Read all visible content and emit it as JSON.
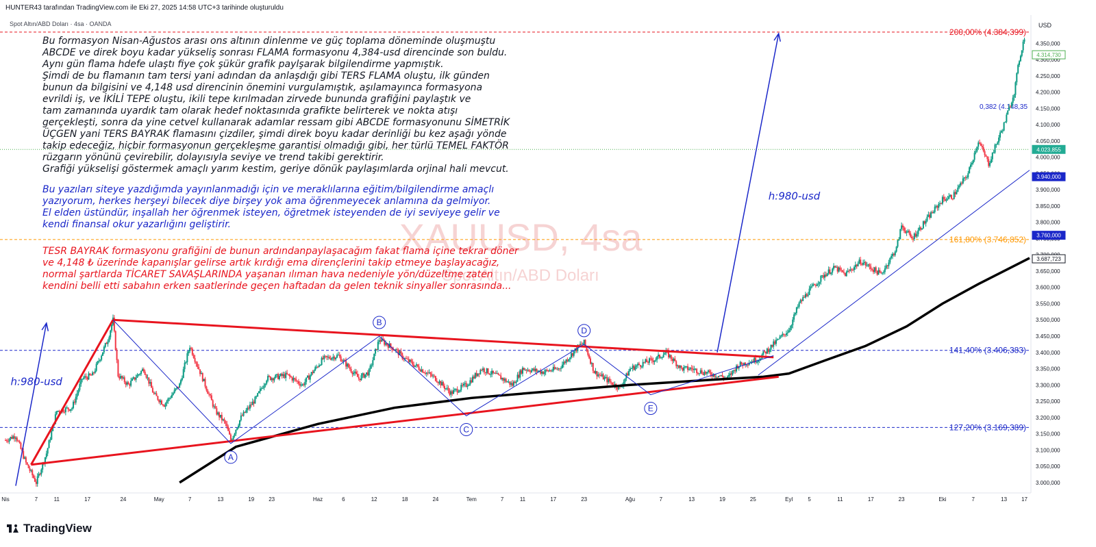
{
  "header": {
    "attribution": "HUNTER43 tarafından TradingView.com ile Eki 27, 2025 14:58 UTC+3 tarihinde oluşturuldu",
    "symbol": "Spot Altın/ABD Doları · 4sa · OANDA",
    "currency": "USD"
  },
  "watermark": {
    "title": "XAUUSD, 4sa",
    "subtitle": "Spot Altın/ABD Doları"
  },
  "notes": {
    "black": [
      "Bu formasyon Nisan-Ağustos arası ons altının dinlenme ve güç toplama döneminde oluşmuştu",
      "ABCDE ve direk boyu kadar yükseliş sonrası FLAMA formasyonu 4,384-usd direncinde son buldu.",
      "Aynı gün flama hdefe ulaştı fiye çok şükür grafik paylşarak bilgilendirme yapmıştık.",
      "Şimdi de bu flamanın tam tersi yani adından da anlaşdığı gibi TERS FLAMA oluştu, ilk günden",
      "bunun da bilgisini ve 4,148 usd direncinin önemini vurgulamıştık, aşılamayınca formasyona",
      "evrildi iş, ve İKİLİ TEPE oluştu, ikili tepe kırılmadan zirvede bununda grafiğini paylaştık ve",
      "tam zamanında uyardık tam olarak hedef noktasınıda grafikte belirterek ve nokta atışı",
      "gerçekleşti, sonra da yine cetvel kullanarak adamlar ressam gibi ABCDE formasyonunu SİMETRİK",
      "ÜÇGEN yani TERS BAYRAK flamasını çizdiler, şimdi direk boyu kadar derinliği bu kez aşağı yönde",
      "takip edeceğiz, hiçbir formasyonun gerçekleşme garantisi olmadığı gibi, her türlü TEMEL FAKTÖR",
      "rüzgarın yönünü çevirebilir, dolayısıyla seviye ve trend takibi gerektirir.",
      "Grafiği yükselişi göstermek amaçlı yarım kestim, geriye dönük paylaşımlarda orjinal hali mevcut."
    ],
    "blue": [
      "Bu yazıları siteye yazdığımda yayınlanmadığı için ve meraklılarına eğitim/bilgilendirme amaçlı",
      "yazıyorum, herkes herşeyi bilecek diye birşey yok ama öğrenmeyecek anlamına da gelmiyor.",
      "El elden üstündür, inşallah her öğrenmek isteyen, öğretmek isteyenden de iyi seviyeye gelir ve",
      "kendi finansal okur yazarlığını geliştirir."
    ],
    "red": [
      "TESR BAYRAK formasyonu grafiğini de bunun ardındanpaylaşacağım fakat flama içine tekrar döner",
      "ve 4,148 ₺ üzerinde kapanışlar gelirse artık kırdığı ema dirençlerini takip etmeye başlayacağız,",
      "normal şartlarda TİCARET SAVAŞLARINDA yaşanan ılıman hava nedeniyle yön/düzeltme zaten",
      "kendini belli etti sabahın erken saatlerinde geçen haftadan da gelen teknik sinyaller sonrasında..."
    ]
  },
  "brand": {
    "logo_text": "TradingView"
  },
  "chart_data": {
    "type": "candlestick",
    "interval": "4sa",
    "y_axis": {
      "range": [
        2985,
        4420
      ],
      "ticks": [
        3000,
        3050,
        3100,
        3150,
        3200,
        3250,
        3300,
        3350,
        3400,
        3450,
        3500,
        3550,
        3600,
        3650,
        3700,
        3750,
        3800,
        3850,
        3900,
        3950,
        4000,
        4050,
        4100,
        4150,
        4200,
        4250,
        4300,
        4350
      ],
      "tick_labels": [
        "3.000,000",
        "3.050,000",
        "3.100,000",
        "3.150,000",
        "3.200,000",
        "3.250,000",
        "3.300,000",
        "3.350,000",
        "3.400,000",
        "3.450,000",
        "3.500,000",
        "3.550,000",
        "3.600,000",
        "3.650,000",
        "3.700,000",
        "3.750,000",
        "3.800,000",
        "3.850,000",
        "3.900,000",
        "3.950,000",
        "4.000,000",
        "4.050,000",
        "4.100,000",
        "4.150,000",
        "4.200,000",
        "4.250,000",
        "4.300,000",
        "4.350,000"
      ]
    },
    "x_axis": {
      "range": [
        "2025-04-01",
        "2025-10-18"
      ],
      "ticks": [
        {
          "date": "2025-04-01",
          "label": "Nis"
        },
        {
          "date": "2025-04-07",
          "label": "7"
        },
        {
          "date": "2025-04-11",
          "label": "11"
        },
        {
          "date": "2025-04-17",
          "label": "17"
        },
        {
          "date": "2025-04-24",
          "label": "24"
        },
        {
          "date": "2025-05-01",
          "label": "May"
        },
        {
          "date": "2025-05-07",
          "label": "7"
        },
        {
          "date": "2025-05-13",
          "label": "13"
        },
        {
          "date": "2025-05-19",
          "label": "19"
        },
        {
          "date": "2025-05-23",
          "label": "23"
        },
        {
          "date": "2025-06-01",
          "label": "Haz"
        },
        {
          "date": "2025-06-06",
          "label": "6"
        },
        {
          "date": "2025-06-12",
          "label": "12"
        },
        {
          "date": "2025-06-18",
          "label": "18"
        },
        {
          "date": "2025-06-24",
          "label": "24"
        },
        {
          "date": "2025-07-01",
          "label": "Tem"
        },
        {
          "date": "2025-07-07",
          "label": "7"
        },
        {
          "date": "2025-07-11",
          "label": "11"
        },
        {
          "date": "2025-07-17",
          "label": "17"
        },
        {
          "date": "2025-07-23",
          "label": "23"
        },
        {
          "date": "2025-08-01",
          "label": "Ağu"
        },
        {
          "date": "2025-08-07",
          "label": "7"
        },
        {
          "date": "2025-08-13",
          "label": "13"
        },
        {
          "date": "2025-08-19",
          "label": "19"
        },
        {
          "date": "2025-08-25",
          "label": "25"
        },
        {
          "date": "2025-09-01",
          "label": "Eyl"
        },
        {
          "date": "2025-09-05",
          "label": "5"
        },
        {
          "date": "2025-09-11",
          "label": "11"
        },
        {
          "date": "2025-09-17",
          "label": "17"
        },
        {
          "date": "2025-09-23",
          "label": "23"
        },
        {
          "date": "2025-10-01",
          "label": "Eki"
        },
        {
          "date": "2025-10-07",
          "label": "7"
        },
        {
          "date": "2025-10-13",
          "label": "13"
        },
        {
          "date": "2025-10-17",
          "label": "17"
        }
      ]
    },
    "price_path": [
      [
        "2025-04-01",
        3130
      ],
      [
        "2025-04-03",
        3145
      ],
      [
        "2025-04-05",
        3060
      ],
      [
        "2025-04-07",
        3000
      ],
      [
        "2025-04-09",
        3090
      ],
      [
        "2025-04-11",
        3220
      ],
      [
        "2025-04-14",
        3230
      ],
      [
        "2025-04-16",
        3320
      ],
      [
        "2025-04-18",
        3330
      ],
      [
        "2025-04-21",
        3440
      ],
      [
        "2025-04-22",
        3500
      ],
      [
        "2025-04-23",
        3330
      ],
      [
        "2025-04-25",
        3300
      ],
      [
        "2025-04-28",
        3350
      ],
      [
        "2025-04-30",
        3270
      ],
      [
        "2025-05-02",
        3240
      ],
      [
        "2025-05-05",
        3300
      ],
      [
        "2025-05-07",
        3420
      ],
      [
        "2025-05-09",
        3340
      ],
      [
        "2025-05-12",
        3220
      ],
      [
        "2025-05-14",
        3180
      ],
      [
        "2025-05-15",
        3130
      ],
      [
        "2025-05-17",
        3200
      ],
      [
        "2025-05-20",
        3260
      ],
      [
        "2025-05-22",
        3320
      ],
      [
        "2025-05-26",
        3330
      ],
      [
        "2025-05-29",
        3300
      ],
      [
        "2025-06-02",
        3380
      ],
      [
        "2025-06-05",
        3390
      ],
      [
        "2025-06-09",
        3320
      ],
      [
        "2025-06-11",
        3340
      ],
      [
        "2025-06-13",
        3440
      ],
      [
        "2025-06-16",
        3410
      ],
      [
        "2025-06-18",
        3380
      ],
      [
        "2025-06-20",
        3360
      ],
      [
        "2025-06-24",
        3320
      ],
      [
        "2025-06-27",
        3275
      ],
      [
        "2025-06-30",
        3300
      ],
      [
        "2025-07-03",
        3350
      ],
      [
        "2025-07-07",
        3320
      ],
      [
        "2025-07-09",
        3300
      ],
      [
        "2025-07-11",
        3350
      ],
      [
        "2025-07-15",
        3340
      ],
      [
        "2025-07-18",
        3350
      ],
      [
        "2025-07-22",
        3420
      ],
      [
        "2025-07-23",
        3430
      ],
      [
        "2025-07-25",
        3340
      ],
      [
        "2025-07-28",
        3310
      ],
      [
        "2025-07-30",
        3290
      ],
      [
        "2025-08-01",
        3350
      ],
      [
        "2025-08-04",
        3370
      ],
      [
        "2025-08-06",
        3380
      ],
      [
        "2025-08-08",
        3400
      ],
      [
        "2025-08-11",
        3350
      ],
      [
        "2025-08-13",
        3350
      ],
      [
        "2025-08-15",
        3340
      ],
      [
        "2025-08-18",
        3330
      ],
      [
        "2025-08-20",
        3320
      ],
      [
        "2025-08-22",
        3360
      ],
      [
        "2025-08-26",
        3380
      ],
      [
        "2025-08-28",
        3410
      ],
      [
        "2025-09-01",
        3470
      ],
      [
        "2025-09-03",
        3550
      ],
      [
        "2025-09-05",
        3590
      ],
      [
        "2025-09-08",
        3640
      ],
      [
        "2025-09-10",
        3660
      ],
      [
        "2025-09-12",
        3640
      ],
      [
        "2025-09-15",
        3680
      ],
      [
        "2025-09-17",
        3660
      ],
      [
        "2025-09-19",
        3640
      ],
      [
        "2025-09-22",
        3720
      ],
      [
        "2025-09-23",
        3790
      ],
      [
        "2025-09-25",
        3750
      ],
      [
        "2025-09-29",
        3830
      ],
      [
        "2025-10-01",
        3870
      ],
      [
        "2025-10-03",
        3880
      ],
      [
        "2025-10-06",
        3950
      ],
      [
        "2025-10-08",
        4050
      ],
      [
        "2025-10-10",
        3980
      ],
      [
        "2025-10-13",
        4100
      ],
      [
        "2025-10-15",
        4200
      ],
      [
        "2025-10-16",
        4300
      ],
      [
        "2025-10-17",
        4370
      ]
    ],
    "ema": [
      [
        "2025-05-05",
        3000
      ],
      [
        "2025-05-16",
        3110
      ],
      [
        "2025-06-01",
        3180
      ],
      [
        "2025-06-16",
        3230
      ],
      [
        "2025-07-01",
        3260
      ],
      [
        "2025-07-16",
        3280
      ],
      [
        "2025-08-01",
        3300
      ],
      [
        "2025-08-16",
        3315
      ],
      [
        "2025-08-27",
        3325
      ],
      [
        "2025-09-01",
        3335
      ],
      [
        "2025-09-08",
        3375
      ],
      [
        "2025-09-16",
        3420
      ],
      [
        "2025-09-24",
        3480
      ],
      [
        "2025-10-01",
        3550
      ],
      [
        "2025-10-08",
        3610
      ],
      [
        "2025-10-18",
        3690
      ]
    ],
    "fib_levels": [
      {
        "label": "200,00% (4.384,399)",
        "value": 4384.399,
        "color": "#e8141e"
      },
      {
        "label": "161,80% (3.746,852)",
        "value": 3746.852,
        "color": "#ff9800"
      },
      {
        "label": "141,40% (3.406,383)",
        "value": 3406.383,
        "color": "#1a27c9"
      },
      {
        "label": "127,20% (3.169,389)",
        "value": 3169.389,
        "color": "#1a27c9"
      },
      {
        "label": "0,382 (4.148,35",
        "value": 4148.35,
        "color": "#1a27c9"
      }
    ],
    "hlines": [
      {
        "value": 4023.855,
        "color": "#4caf50"
      }
    ],
    "price_tags": [
      {
        "label": "4.314,730",
        "value": 4314.73,
        "bg": "#ffffff",
        "fg": "#4caf50",
        "border": "#4caf50"
      },
      {
        "label": "4.023,855",
        "value": 4023.855,
        "bg": "#22ab94",
        "fg": "#ffffff",
        "border": "#22ab94"
      },
      {
        "label": "3.940,000",
        "value": 3940,
        "bg": "#1a27c9",
        "fg": "#ffffff",
        "border": "#1a27c9"
      },
      {
        "label": "3.760,000",
        "value": 3760,
        "bg": "#1a27c9",
        "fg": "#ffffff",
        "border": "#1a27c9"
      },
      {
        "label": "3.687,723",
        "value": 3687.723,
        "bg": "#ffffff",
        "fg": "#131722",
        "border": "#131722"
      }
    ],
    "pattern_points": [
      {
        "name": "A",
        "date": "2025-05-15",
        "value": 3120
      },
      {
        "name": "B",
        "date": "2025-06-13",
        "value": 3450
      },
      {
        "name": "C",
        "date": "2025-06-30",
        "value": 3205
      },
      {
        "name": "D",
        "date": "2025-07-23",
        "value": 3425
      },
      {
        "name": "E",
        "date": "2025-08-05",
        "value": 3270
      }
    ],
    "pattern_start": {
      "date": "2025-04-22",
      "value": 3500
    },
    "pattern_end": {
      "date": "2025-08-29",
      "value": 3390
    },
    "flag": {
      "upper": [
        [
          "2025-04-22",
          3500
        ],
        [
          "2025-08-29",
          3385
        ]
      ],
      "lower": [
        [
          "2025-04-06",
          3055
        ],
        [
          "2025-08-30",
          3325
        ]
      ],
      "pole": [
        [
          "2025-04-06",
          3055
        ],
        [
          "2025-04-22",
          3500
        ]
      ]
    },
    "trendline": [
      [
        "2025-08-26",
        3330
      ],
      [
        "2025-10-18",
        3960
      ]
    ],
    "arrows": [
      {
        "from": [
          "2025-04-03",
          2990
        ],
        "to": [
          "2025-04-09",
          3490
        ],
        "label": "h:980-usd",
        "label_at": [
          "2025-04-02",
          3300
        ]
      },
      {
        "from": [
          "2025-08-18",
          3400
        ],
        "to": [
          "2025-08-30",
          4380
        ],
        "label": "h:980-usd",
        "label_at": [
          "2025-08-28",
          3870
        ]
      }
    ]
  }
}
